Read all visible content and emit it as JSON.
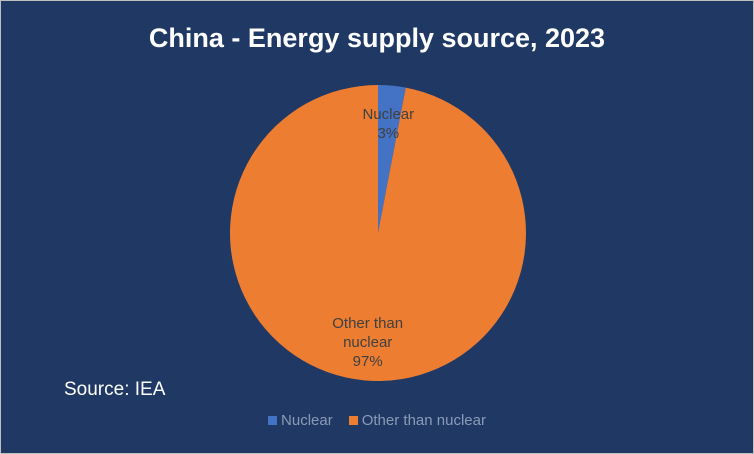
{
  "chart_data": {
    "type": "pie",
    "title": "China - Energy supply source, 2023",
    "categories": [
      "Nuclear",
      "Other than nuclear"
    ],
    "values": [
      3,
      97
    ],
    "value_labels": [
      "3%",
      "97%"
    ],
    "colors": [
      "#4472c4",
      "#ed7d31"
    ],
    "annotation": "Source: IEA",
    "legend": "bottom"
  }
}
